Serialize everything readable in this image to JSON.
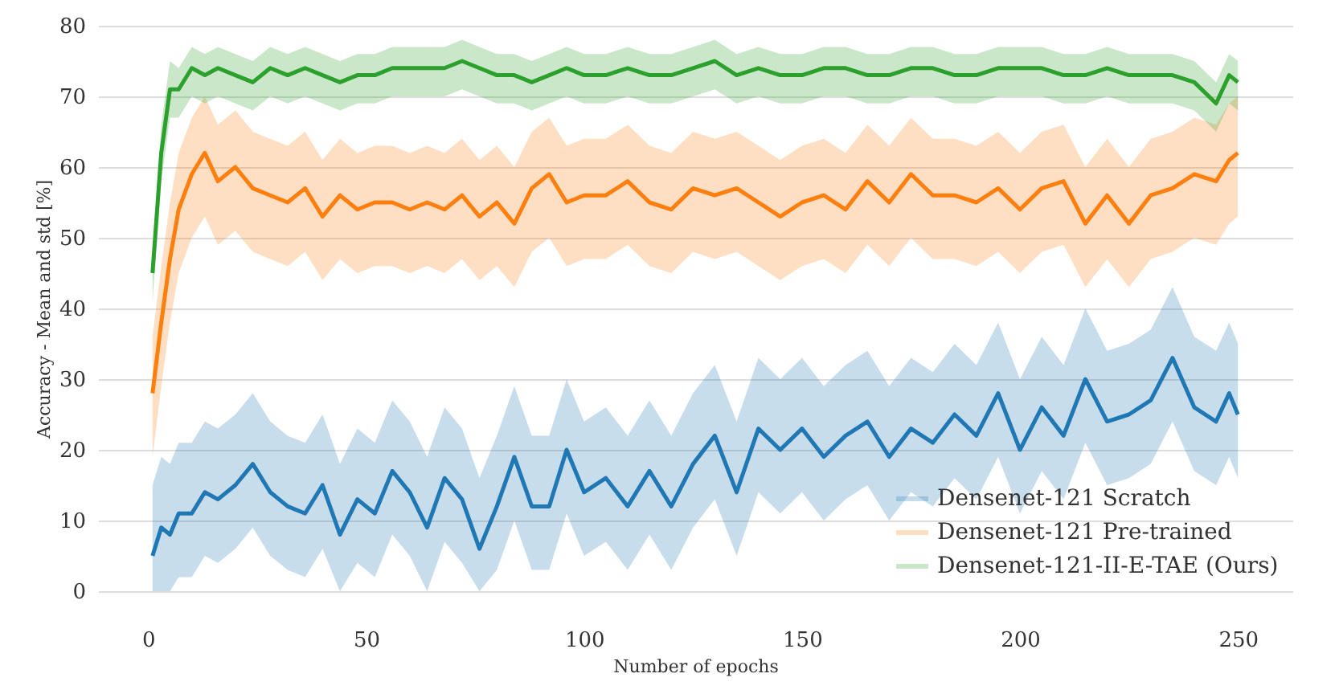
{
  "chart_data": {
    "type": "line",
    "xlabel": "Number of epochs",
    "ylabel": "Accuracy - Mean and std [%]",
    "xlim": [
      -11.5,
      262.5
    ],
    "ylim": [
      0,
      80
    ],
    "xticks": [
      0,
      50,
      100,
      150,
      200,
      250
    ],
    "yticks": [
      0,
      10,
      20,
      30,
      40,
      50,
      60,
      70,
      80
    ],
    "grid": "y",
    "legend": "bottom right",
    "line_style": "solid",
    "x": [
      1,
      3,
      5,
      7,
      10,
      13,
      16,
      20,
      24,
      28,
      32,
      36,
      40,
      44,
      48,
      52,
      56,
      60,
      64,
      68,
      72,
      76,
      80,
      84,
      88,
      92,
      96,
      100,
      105,
      110,
      115,
      120,
      125,
      130,
      135,
      140,
      145,
      150,
      155,
      160,
      165,
      170,
      175,
      180,
      185,
      190,
      195,
      200,
      205,
      210,
      215,
      220,
      225,
      230,
      235,
      240,
      245,
      248,
      250
    ],
    "series": [
      {
        "name": "Densenet-121 Scratch",
        "color": "#1f77b4",
        "values": [
          5,
          9,
          8,
          11,
          11,
          14,
          13,
          15,
          18,
          14,
          12,
          11,
          15,
          8,
          13,
          11,
          17,
          14,
          9,
          16,
          13,
          6,
          12,
          19,
          12,
          12,
          20,
          14,
          16,
          12,
          17,
          12,
          18,
          22,
          14,
          23,
          20,
          23,
          19,
          22,
          24,
          19,
          23,
          21,
          25,
          22,
          28,
          20,
          26,
          22,
          30,
          24,
          25,
          27,
          33,
          26,
          24,
          28,
          25
        ],
        "lower": [
          0,
          0,
          0,
          2,
          2,
          5,
          4,
          6,
          9,
          5,
          3,
          2,
          6,
          0,
          4,
          2,
          8,
          5,
          0,
          7,
          4,
          0,
          3,
          10,
          3,
          3,
          11,
          5,
          7,
          3,
          8,
          3,
          9,
          13,
          5,
          14,
          11,
          14,
          10,
          13,
          15,
          10,
          14,
          12,
          16,
          13,
          19,
          11,
          17,
          13,
          21,
          15,
          16,
          18,
          24,
          17,
          15,
          19,
          16
        ],
        "upper": [
          15,
          19,
          18,
          21,
          21,
          24,
          23,
          25,
          28,
          24,
          22,
          21,
          25,
          18,
          23,
          21,
          27,
          24,
          19,
          26,
          23,
          16,
          22,
          29,
          22,
          22,
          30,
          24,
          26,
          22,
          27,
          22,
          28,
          32,
          24,
          33,
          30,
          33,
          29,
          32,
          34,
          29,
          33,
          31,
          35,
          32,
          38,
          30,
          36,
          32,
          40,
          34,
          35,
          37,
          43,
          36,
          34,
          38,
          35
        ]
      },
      {
        "name": "Densenet-121 Pre-trained",
        "color": "#ff7f0e",
        "values": [
          28,
          38,
          47,
          54,
          59,
          62,
          58,
          60,
          57,
          56,
          55,
          57,
          53,
          56,
          54,
          55,
          55,
          54,
          55,
          54,
          56,
          53,
          55,
          52,
          57,
          59,
          55,
          56,
          56,
          58,
          55,
          54,
          57,
          56,
          57,
          55,
          53,
          55,
          56,
          54,
          58,
          55,
          59,
          56,
          56,
          55,
          57,
          54,
          57,
          58,
          52,
          56,
          52,
          56,
          57,
          59,
          58,
          61,
          62
        ],
        "lower": [
          19,
          29,
          38,
          45,
          50,
          53,
          49,
          51,
          48,
          47,
          46,
          48,
          44,
          47,
          45,
          46,
          46,
          45,
          46,
          45,
          47,
          44,
          46,
          43,
          48,
          50,
          46,
          47,
          47,
          49,
          46,
          45,
          48,
          47,
          48,
          46,
          44,
          46,
          47,
          45,
          49,
          46,
          50,
          47,
          47,
          46,
          48,
          45,
          48,
          49,
          43,
          47,
          43,
          47,
          48,
          50,
          49,
          52,
          53
        ],
        "upper": [
          36,
          46,
          55,
          62,
          67,
          70,
          66,
          68,
          65,
          64,
          63,
          65,
          61,
          64,
          62,
          63,
          63,
          62,
          63,
          62,
          64,
          61,
          63,
          60,
          65,
          67,
          63,
          64,
          64,
          66,
          63,
          62,
          65,
          64,
          65,
          63,
          61,
          63,
          64,
          62,
          66,
          63,
          67,
          64,
          64,
          63,
          65,
          62,
          65,
          66,
          60,
          64,
          60,
          64,
          65,
          67,
          66,
          69,
          70
        ]
      },
      {
        "name": "Densenet-121-II-E-TAE (Ours)",
        "color": "#2ca02c",
        "values": [
          45,
          62,
          71,
          71,
          74,
          73,
          74,
          73,
          72,
          74,
          73,
          74,
          73,
          72,
          73,
          73,
          74,
          74,
          74,
          74,
          75,
          74,
          73,
          73,
          72,
          73,
          74,
          73,
          73,
          74,
          73,
          73,
          74,
          75,
          73,
          74,
          73,
          73,
          74,
          74,
          73,
          73,
          74,
          74,
          73,
          73,
          74,
          74,
          74,
          73,
          73,
          74,
          73,
          73,
          73,
          72,
          69,
          73,
          72
        ],
        "lower": [
          41,
          58,
          67,
          67,
          70,
          69,
          70,
          69,
          68,
          70,
          69,
          70,
          69,
          68,
          69,
          69,
          70,
          70,
          70,
          70,
          71,
          70,
          69,
          69,
          68,
          69,
          70,
          69,
          69,
          70,
          69,
          69,
          70,
          71,
          69,
          70,
          69,
          69,
          70,
          70,
          69,
          69,
          70,
          70,
          69,
          69,
          70,
          70,
          70,
          69,
          69,
          70,
          69,
          69,
          69,
          68,
          65,
          69,
          68
        ],
        "upper": [
          48,
          66,
          75,
          74,
          77,
          76,
          77,
          76,
          75,
          77,
          76,
          77,
          76,
          75,
          76,
          76,
          77,
          77,
          77,
          77,
          78,
          77,
          76,
          76,
          75,
          76,
          77,
          76,
          76,
          77,
          76,
          76,
          77,
          78,
          76,
          77,
          76,
          76,
          77,
          77,
          76,
          76,
          77,
          77,
          76,
          76,
          77,
          77,
          77,
          76,
          76,
          77,
          76,
          76,
          76,
          75,
          72,
          76,
          75
        ]
      }
    ]
  }
}
